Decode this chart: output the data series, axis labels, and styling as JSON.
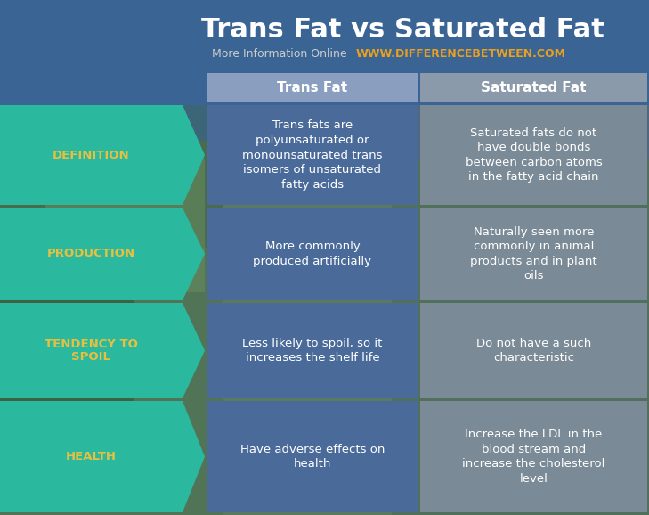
{
  "title": "Trans Fat vs Saturated Fat",
  "subtitle_gray": "More Information Online",
  "subtitle_yellow": "WWW.DIFFERENCEBETWEEN.COM",
  "header_col1": "Trans Fat",
  "header_col2": "Saturated Fat",
  "rows": [
    {
      "label": "DEFINITION",
      "col1": "Trans fats are\npolyunsaturated or\nmonounsaturated trans\nisomers of unsaturated\nfatty acids",
      "col2": "Saturated fats do not\nhave double bonds\nbetween carbon atoms\nin the fatty acid chain"
    },
    {
      "label": "PRODUCTION",
      "col1": "More commonly\nproduced artificially",
      "col2": "Naturally seen more\ncommonly in animal\nproducts and in plant\noils"
    },
    {
      "label": "TENDENCY TO\nSPOIL",
      "col1": "Less likely to spoil, so it\nincreases the shelf life",
      "col2": "Do not have a such\ncharacteristic"
    },
    {
      "label": "HEALTH",
      "col1": "Have adverse effects on\nhealth",
      "col2": "Increase the LDL in the\nblood stream and\nincrease the cholesterol\nlevel"
    }
  ],
  "bg_top_color": "#3a6494",
  "bg_nature_color": "#4a7a5a",
  "header_col1_color": "#8a9fbf",
  "header_col2_color": "#8a9aaa",
  "col1_color": "#4a6b9a",
  "col2_color": "#7a8a96",
  "label_color": "#2ab89e",
  "label_text_color": "#e8c040",
  "header_text_color": "#ffffff",
  "cell_text_color": "#ffffff",
  "title_color": "#ffffff",
  "subtitle_gray_color": "#cccccc",
  "subtitle_yellow_color": "#e8a020",
  "fig_w": 7.29,
  "fig_h": 5.78,
  "dpi": 100
}
